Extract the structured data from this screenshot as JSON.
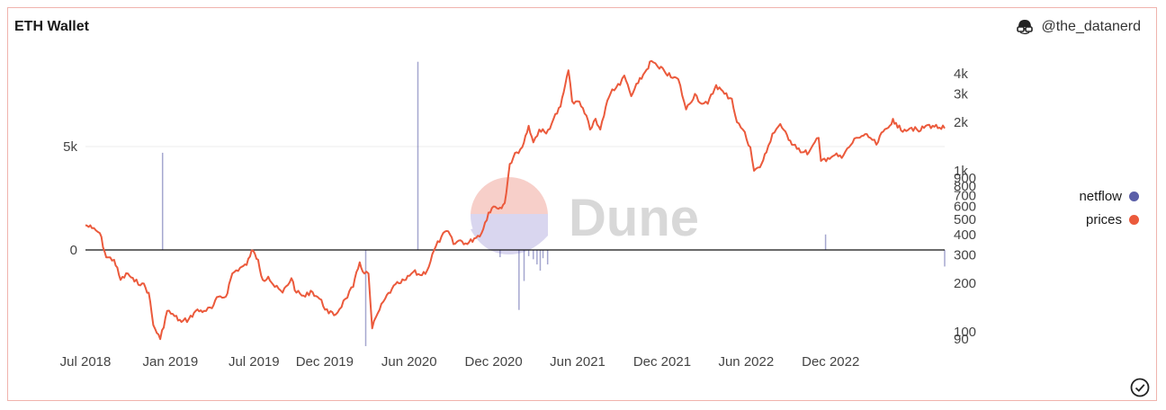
{
  "header": {
    "title": "ETH Wallet",
    "author": "@the_datanerd",
    "author_icon": "glasses-face-icon"
  },
  "watermark": {
    "text": "Dune",
    "colors": [
      "#f7cfc9",
      "#d9d6ef"
    ]
  },
  "legend": {
    "placement": "right",
    "items": [
      {
        "label": "netflow",
        "color": "#5b5fa8"
      },
      {
        "label": "prices",
        "color": "#eb5a3c"
      }
    ]
  },
  "chart_data": {
    "type": "line",
    "title": "ETH Wallet",
    "x_tick_labels": [
      "Jul 2018",
      "Jan 2019",
      "Jul 2019",
      "Dec 2019",
      "Jun 2020",
      "Dec 2020",
      "Jun 2021",
      "Dec 2021",
      "Jun 2022",
      "Dec 2022"
    ],
    "left_axis": {
      "tick_labels": [
        "5k",
        "0"
      ],
      "ticks": [
        5000,
        0
      ],
      "ylim": [
        -4650,
        9100
      ]
    },
    "right_axis": {
      "scale": "log",
      "tick_labels": [
        "4k",
        "3k",
        "2k",
        "1k",
        "900",
        "800",
        "700",
        "600",
        "500",
        "400",
        "300",
        "200",
        "100",
        "90"
      ],
      "ticks": [
        4000,
        3000,
        2000,
        1000,
        900,
        800,
        700,
        600,
        500,
        400,
        300,
        200,
        100,
        90
      ]
    },
    "grid": "horizontal",
    "series": [
      {
        "name": "prices",
        "axis": "right",
        "color": "#eb5a3c",
        "points": [
          [
            "2018-07-01",
            460
          ],
          [
            "2018-07-15",
            440
          ],
          [
            "2018-08-01",
            410
          ],
          [
            "2018-08-15",
            290
          ],
          [
            "2018-09-01",
            280
          ],
          [
            "2018-09-15",
            210
          ],
          [
            "2018-10-01",
            230
          ],
          [
            "2018-10-15",
            205
          ],
          [
            "2018-11-01",
            200
          ],
          [
            "2018-11-15",
            175
          ],
          [
            "2018-11-25",
            110
          ],
          [
            "2018-12-10",
            90
          ],
          [
            "2018-12-25",
            135
          ],
          [
            "2019-01-10",
            125
          ],
          [
            "2019-01-25",
            115
          ],
          [
            "2019-02-10",
            120
          ],
          [
            "2019-02-25",
            135
          ],
          [
            "2019-03-15",
            135
          ],
          [
            "2019-04-01",
            140
          ],
          [
            "2019-04-15",
            165
          ],
          [
            "2019-05-01",
            165
          ],
          [
            "2019-05-15",
            230
          ],
          [
            "2019-06-01",
            250
          ],
          [
            "2019-06-15",
            260
          ],
          [
            "2019-06-26",
            320
          ],
          [
            "2019-07-10",
            280
          ],
          [
            "2019-07-20",
            210
          ],
          [
            "2019-08-01",
            220
          ],
          [
            "2019-08-15",
            190
          ],
          [
            "2019-09-01",
            175
          ],
          [
            "2019-09-20",
            215
          ],
          [
            "2019-10-01",
            175
          ],
          [
            "2019-10-20",
            165
          ],
          [
            "2019-11-01",
            180
          ],
          [
            "2019-11-20",
            160
          ],
          [
            "2019-12-10",
            130
          ],
          [
            "2019-12-25",
            128
          ],
          [
            "2020-01-15",
            160
          ],
          [
            "2020-02-01",
            190
          ],
          [
            "2020-02-15",
            270
          ],
          [
            "2020-02-25",
            230
          ],
          [
            "2020-03-05",
            230
          ],
          [
            "2020-03-13",
            105
          ],
          [
            "2020-03-25",
            130
          ],
          [
            "2020-04-10",
            160
          ],
          [
            "2020-04-25",
            185
          ],
          [
            "2020-05-10",
            200
          ],
          [
            "2020-05-25",
            210
          ],
          [
            "2020-06-10",
            235
          ],
          [
            "2020-06-25",
            225
          ],
          [
            "2020-07-10",
            240
          ],
          [
            "2020-07-25",
            320
          ],
          [
            "2020-08-10",
            390
          ],
          [
            "2020-08-25",
            420
          ],
          [
            "2020-09-05",
            350
          ],
          [
            "2020-09-20",
            370
          ],
          [
            "2020-10-05",
            350
          ],
          [
            "2020-10-20",
            380
          ],
          [
            "2020-11-05",
            410
          ],
          [
            "2020-11-20",
            550
          ],
          [
            "2020-12-01",
            600
          ],
          [
            "2020-12-15",
            590
          ],
          [
            "2020-12-25",
            630
          ],
          [
            "2021-01-05",
            1100
          ],
          [
            "2021-01-20",
            1300
          ],
          [
            "2021-02-01",
            1400
          ],
          [
            "2021-02-15",
            1900
          ],
          [
            "2021-02-25",
            1500
          ],
          [
            "2021-03-10",
            1800
          ],
          [
            "2021-03-25",
            1700
          ],
          [
            "2021-04-10",
            2100
          ],
          [
            "2021-04-25",
            2500
          ],
          [
            "2021-05-05",
            3400
          ],
          [
            "2021-05-12",
            4200
          ],
          [
            "2021-05-20",
            2700
          ],
          [
            "2021-06-01",
            2700
          ],
          [
            "2021-06-20",
            2200
          ],
          [
            "2021-06-28",
            1800
          ],
          [
            "2021-07-10",
            2100
          ],
          [
            "2021-07-20",
            1800
          ],
          [
            "2021-08-01",
            2500
          ],
          [
            "2021-08-15",
            3200
          ],
          [
            "2021-09-01",
            3400
          ],
          [
            "2021-09-10",
            3900
          ],
          [
            "2021-09-25",
            2900
          ],
          [
            "2021-10-10",
            3500
          ],
          [
            "2021-10-25",
            4100
          ],
          [
            "2021-11-08",
            4800
          ],
          [
            "2021-11-25",
            4300
          ],
          [
            "2021-12-05",
            4200
          ],
          [
            "2021-12-20",
            3800
          ],
          [
            "2022-01-05",
            3700
          ],
          [
            "2022-01-22",
            2400
          ],
          [
            "2022-02-10",
            3000
          ],
          [
            "2022-02-25",
            2600
          ],
          [
            "2022-03-10",
            2600
          ],
          [
            "2022-03-28",
            3400
          ],
          [
            "2022-04-15",
            3000
          ],
          [
            "2022-05-01",
            2800
          ],
          [
            "2022-05-12",
            2000
          ],
          [
            "2022-05-25",
            1800
          ],
          [
            "2022-06-10",
            1400
          ],
          [
            "2022-06-18",
            1000
          ],
          [
            "2022-07-01",
            1050
          ],
          [
            "2022-07-15",
            1300
          ],
          [
            "2022-07-28",
            1700
          ],
          [
            "2022-08-14",
            1950
          ],
          [
            "2022-09-01",
            1550
          ],
          [
            "2022-09-15",
            1450
          ],
          [
            "2022-10-01",
            1300
          ],
          [
            "2022-10-15",
            1300
          ],
          [
            "2022-11-05",
            1600
          ],
          [
            "2022-11-10",
            1150
          ],
          [
            "2022-11-25",
            1200
          ],
          [
            "2022-12-10",
            1250
          ],
          [
            "2022-12-25",
            1200
          ],
          [
            "2023-01-10",
            1400
          ],
          [
            "2023-01-25",
            1600
          ],
          [
            "2023-02-10",
            1650
          ],
          [
            "2023-02-25",
            1600
          ],
          [
            "2023-03-10",
            1450
          ],
          [
            "2023-03-25",
            1750
          ],
          [
            "2023-04-05",
            1850
          ],
          [
            "2023-04-15",
            2100
          ],
          [
            "2023-04-25",
            1850
          ],
          [
            "2023-05-10",
            1800
          ],
          [
            "2023-05-25",
            1850
          ],
          [
            "2023-06-10",
            1750
          ],
          [
            "2023-06-25",
            1900
          ],
          [
            "2023-07-10",
            1900
          ],
          [
            "2023-07-25",
            1850
          ],
          [
            "2023-08-05",
            1830
          ]
        ]
      },
      {
        "name": "netflow",
        "axis": "left",
        "color": "#5b5fa8",
        "bars": [
          [
            "2018-12-15",
            4700
          ],
          [
            "2020-02-28",
            -4650
          ],
          [
            "2020-06-20",
            9100
          ],
          [
            "2020-12-15",
            -350
          ],
          [
            "2021-01-25",
            -2900
          ],
          [
            "2021-02-05",
            -1500
          ],
          [
            "2021-02-15",
            -300
          ],
          [
            "2021-02-25",
            -450
          ],
          [
            "2021-03-05",
            -700
          ],
          [
            "2021-03-12",
            -1000
          ],
          [
            "2021-03-18",
            -400
          ],
          [
            "2021-03-28",
            -700
          ],
          [
            "2022-11-20",
            750
          ],
          [
            "2023-08-05",
            -800
          ]
        ]
      }
    ]
  }
}
